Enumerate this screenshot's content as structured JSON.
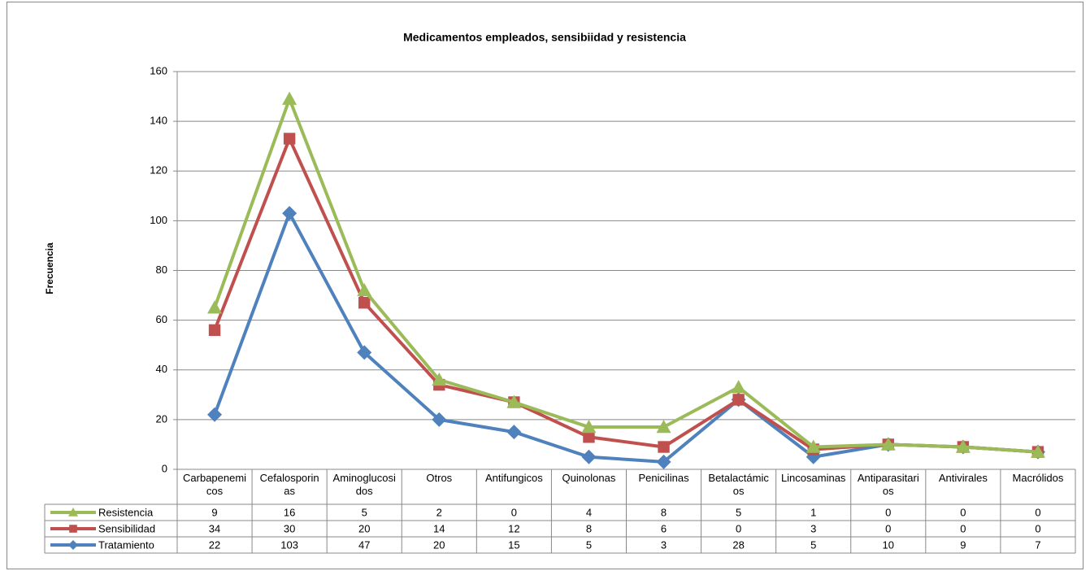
{
  "chart_data": {
    "type": "line",
    "stacked": true,
    "title": "Medicamentos empleados, sensibiidad y resistencia",
    "ylabel": "Frecuencia",
    "categories": [
      "Carbapenemicos",
      "Cefalosporinas",
      "Aminoglucosidos",
      "Otros",
      "Antifungicos",
      "Quinolonas",
      "Penicilinas",
      "Betalactámicos",
      "Lincosaminas",
      "Antiparasitarios",
      "Antivirales",
      "Macrólidos"
    ],
    "series": [
      {
        "name": "Tratamiento",
        "color": "#4f81bd",
        "marker": "diamond",
        "values": [
          22,
          103,
          47,
          20,
          15,
          5,
          3,
          28,
          5,
          10,
          9,
          7
        ]
      },
      {
        "name": "Sensibilidad",
        "color": "#c0504d",
        "marker": "square",
        "values": [
          34,
          30,
          20,
          14,
          12,
          8,
          6,
          0,
          3,
          0,
          0,
          0
        ]
      },
      {
        "name": "Resistencia",
        "color": "#9bbb59",
        "marker": "triangle",
        "values": [
          9,
          16,
          5,
          2,
          0,
          4,
          8,
          5,
          1,
          0,
          0,
          0
        ]
      }
    ],
    "ylim": [
      0,
      160
    ],
    "yticks": [
      0,
      20,
      40,
      60,
      80,
      100,
      120,
      140,
      160
    ],
    "grid": true,
    "data_table": true
  }
}
